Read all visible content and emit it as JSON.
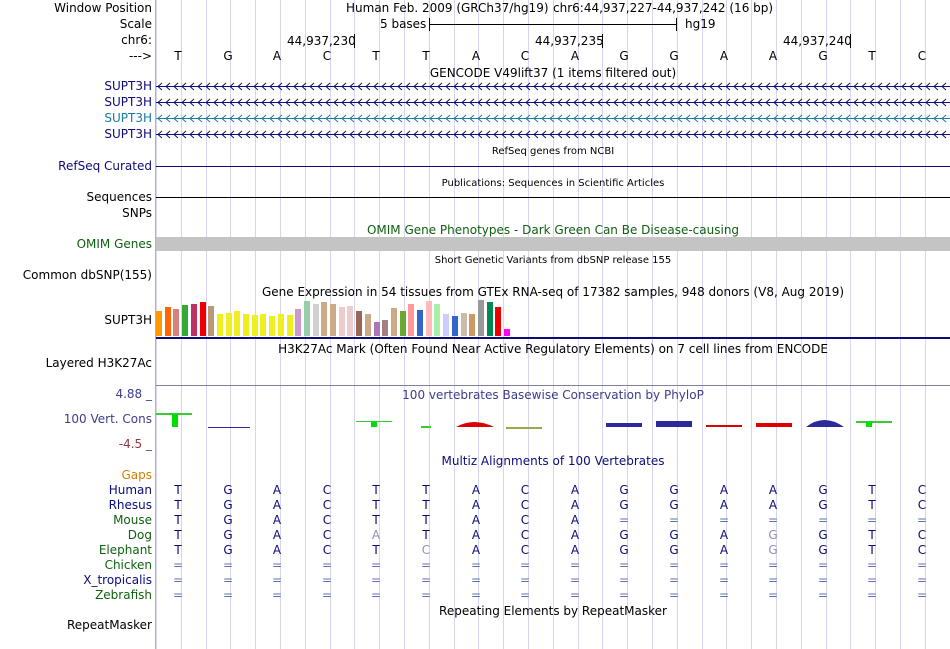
{
  "left_labels": [
    {
      "key": "window_position",
      "text": "Window Position",
      "color": "#000000"
    },
    {
      "key": "scale",
      "text": "Scale",
      "color": "#000000"
    },
    {
      "key": "chr",
      "text": "chr6:",
      "color": "#000000"
    },
    {
      "key": "strand",
      "text": "--->",
      "color": "#000000"
    },
    {
      "key": "gene1",
      "text": "SUPT3H",
      "color": "#0c0c78"
    },
    {
      "key": "gene2",
      "text": "SUPT3H",
      "color": "#0c0c78"
    },
    {
      "key": "gene3",
      "text": "SUPT3H",
      "color": "#1a7aa0"
    },
    {
      "key": "gene4",
      "text": "SUPT3H",
      "color": "#0c0c78"
    },
    {
      "key": "refseq",
      "text": "RefSeq Curated",
      "color": "#0c0c78"
    },
    {
      "key": "sequences",
      "text": "Sequences",
      "color": "#000000"
    },
    {
      "key": "snps",
      "text": "SNPs",
      "color": "#000000"
    },
    {
      "key": "omim",
      "text": "OMIM Genes",
      "color": "#106010"
    },
    {
      "key": "dbsnp",
      "text": "Common dbSNP(155)",
      "color": "#000000"
    },
    {
      "key": "gtex",
      "text": "SUPT3H",
      "color": "#000000"
    },
    {
      "key": "h3k27ac",
      "text": "Layered H3K27Ac",
      "color": "#000000"
    },
    {
      "key": "phylop_max",
      "text": "4.88 _",
      "color": "#3c3c8c"
    },
    {
      "key": "phylop",
      "text": "100 Vert. Cons",
      "color": "#3c3c8c"
    },
    {
      "key": "phylop_min",
      "text": "-4.5 _",
      "color": "#8c3c3c"
    },
    {
      "key": "gaps",
      "text": "Gaps",
      "color": "#d08000"
    },
    {
      "key": "sp_human",
      "text": "Human",
      "color": "#0c0c78"
    },
    {
      "key": "sp_rhesus",
      "text": "Rhesus",
      "color": "#0c0c78"
    },
    {
      "key": "sp_mouse",
      "text": "Mouse",
      "color": "#106010"
    },
    {
      "key": "sp_dog",
      "text": "Dog",
      "color": "#106010"
    },
    {
      "key": "sp_elephant",
      "text": "Elephant",
      "color": "#106010"
    },
    {
      "key": "sp_chicken",
      "text": "Chicken",
      "color": "#106010"
    },
    {
      "key": "sp_xtrop",
      "text": "X_tropicalis",
      "color": "#0c0c78"
    },
    {
      "key": "sp_zebrafish",
      "text": "Zebrafish",
      "color": "#106010"
    },
    {
      "key": "repeatmasker",
      "text": "RepeatMasker",
      "color": "#000000"
    }
  ],
  "header": {
    "assembly": "Human Feb. 2009 (GRCh37/hg19)",
    "position": "chr6:44,937,227-44,937,242 (16 bp)",
    "scale_label": "5 bases",
    "db_label": "hg19",
    "ticks": [
      "44,937,230",
      "44,937,235",
      "44,937,240"
    ]
  },
  "bases": [
    "T",
    "G",
    "A",
    "C",
    "T",
    "T",
    "A",
    "C",
    "A",
    "G",
    "G",
    "A",
    "A",
    "G",
    "T",
    "C"
  ],
  "track_titles": {
    "gencode": "GENCODE V49lift37 (1 items filtered out)",
    "refseq": "RefSeq genes from NCBI",
    "publications": "Publications: Sequences in Scientific Articles",
    "omim": "OMIM Gene Phenotypes - Dark Green Can Be Disease-causing",
    "dbsnp": "Short Genetic Variants from dbSNP release 155",
    "gtex": "Gene Expression in 54 tissues from GTEx RNA-seq of 17382 samples, 948 donors (V8, Aug 2019)",
    "h3k27ac": "H3K27Ac Mark (Often Found Near Active Regulatory Elements) on 7 cell lines from ENCODE",
    "phylop": "100 vertebrates Basewise Conservation by PhyloP",
    "multiz": "Multiz Alignments of 100 Vertebrates",
    "repeatmasker": "Repeating Elements by RepeatMasker"
  },
  "alignment": [
    {
      "species": "Human",
      "bases": [
        "T",
        "G",
        "A",
        "C",
        "T",
        "T",
        "A",
        "C",
        "A",
        "G",
        "G",
        "A",
        "A",
        "G",
        "T",
        "C"
      ]
    },
    {
      "species": "Rhesus",
      "bases": [
        "T",
        "G",
        "A",
        "C",
        "T",
        "T",
        "A",
        "C",
        "A",
        "G",
        "G",
        "A",
        "A",
        "G",
        "T",
        "C"
      ]
    },
    {
      "species": "Mouse",
      "bases": [
        "T",
        "G",
        "A",
        "C",
        "T",
        "T",
        "A",
        "C",
        "A",
        "=",
        "=",
        "=",
        "=",
        "=",
        "=",
        "="
      ]
    },
    {
      "species": "Dog",
      "bases": [
        "T",
        "G",
        "A",
        "C",
        "A",
        "T",
        "A",
        "C",
        "A",
        "G",
        "G",
        "A",
        "G",
        "G",
        "T",
        "C"
      ]
    },
    {
      "species": "Elephant",
      "bases": [
        "T",
        "G",
        "A",
        "C",
        "T",
        "C",
        "A",
        "C",
        "A",
        "G",
        "G",
        "A",
        "G",
        "G",
        "T",
        "C"
      ]
    },
    {
      "species": "Chicken",
      "bases": [
        "=",
        "=",
        "=",
        "=",
        "=",
        "=",
        "=",
        "=",
        "=",
        "=",
        "=",
        "=",
        "=",
        "=",
        "=",
        "="
      ]
    },
    {
      "species": "X_tropicalis",
      "bases": [
        "=",
        "=",
        "=",
        "=",
        "=",
        "=",
        "=",
        "=",
        "=",
        "=",
        "=",
        "=",
        "=",
        "=",
        "=",
        "="
      ]
    },
    {
      "species": "Zebrafish",
      "bases": [
        "=",
        "=",
        "=",
        "=",
        "=",
        "=",
        "=",
        "=",
        "=",
        "=",
        "=",
        "=",
        "=",
        "=",
        "=",
        "="
      ]
    }
  ],
  "gtex_colors": [
    "#ff9900",
    "#ff6600",
    "#d68080",
    "#33aa33",
    "#bb3366",
    "#ee0000",
    "#bb9977",
    "#eeee22",
    "#eeee22",
    "#eeee22",
    "#eeee22",
    "#eeee22",
    "#eeee22",
    "#eeee22",
    "#eeee22",
    "#eeee22",
    "#cc99cc",
    "#99ccaa",
    "#d0d0d0",
    "#ccaa88",
    "#ccaa88",
    "#eecccc",
    "#eecccc",
    "#996655",
    "#ccaa88",
    "#aa77bb",
    "#a08080",
    "#ccaa88",
    "#66aa33",
    "#ff9999",
    "#3366cc",
    "#ffbbbb",
    "#aaeeaa",
    "#ccccff",
    "#3366cc",
    "#ccbbaa",
    "#cc9966",
    "#999999",
    "#008855",
    "#ee0000",
    "#ff00ff"
  ],
  "gtex_values": [
    0.7,
    0.8,
    0.75,
    0.85,
    0.9,
    0.95,
    0.82,
    0.6,
    0.65,
    0.7,
    0.62,
    0.58,
    0.6,
    0.55,
    0.6,
    0.58,
    0.75,
    0.98,
    0.9,
    0.95,
    0.88,
    0.8,
    0.82,
    0.7,
    0.6,
    0.4,
    0.45,
    0.78,
    0.7,
    0.9,
    0.72,
    0.98,
    0.88,
    0.6,
    0.55,
    0.65,
    0.6,
    1.0,
    0.95,
    0.8,
    0.2
  ],
  "colors": {
    "gene": "#0c0c78",
    "gene_alt": "#1a7aa0",
    "omim_bar": "#c4c4c4",
    "phylop_pos": "#2a2a9a",
    "ruler": "#000000"
  }
}
